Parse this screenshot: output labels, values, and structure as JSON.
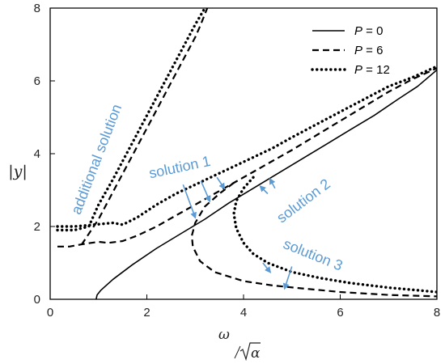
{
  "chart_data": {
    "type": "line",
    "xlabel_num": "ω",
    "xlabel_den": "α",
    "ylabel": "|y|",
    "xlim": [
      0,
      8
    ],
    "ylim": [
      0,
      8
    ],
    "x_ticks": [
      "0",
      "2",
      "4",
      "6",
      "8"
    ],
    "y_ticks": [
      "0",
      "2",
      "4",
      "6",
      "8"
    ],
    "grid": false,
    "legend_position": "top-right",
    "legend": [
      {
        "label_var": "P",
        "label_eq": " = 0",
        "style": "solid"
      },
      {
        "label_var": "P",
        "label_eq": " = 6",
        "style": "dashed"
      },
      {
        "label_var": "P",
        "label_eq": " = 12",
        "style": "dotted"
      }
    ],
    "series": [
      {
        "style": "solid",
        "segments": [
          [
            [
              0.95,
              0
            ],
            [
              0.97,
              0.12
            ],
            [
              1.05,
              0.25
            ],
            [
              1.3,
              0.55
            ],
            [
              1.7,
              0.95
            ],
            [
              2.2,
              1.4
            ],
            [
              2.7,
              1.8
            ],
            [
              3.2,
              2.2
            ],
            [
              3.7,
              2.65
            ],
            [
              4.2,
              3.05
            ],
            [
              4.7,
              3.45
            ],
            [
              5.2,
              3.85
            ],
            [
              5.7,
              4.25
            ],
            [
              6.2,
              4.65
            ],
            [
              6.7,
              5.05
            ],
            [
              7.2,
              5.5
            ],
            [
              7.6,
              5.85
            ],
            [
              8.0,
              6.3
            ]
          ]
        ]
      },
      {
        "style": "dashed",
        "segments": [
          [
            [
              0.15,
              1.45
            ],
            [
              0.4,
              1.45
            ],
            [
              0.7,
              1.52
            ],
            [
              1.0,
              1.58
            ],
            [
              1.2,
              1.55
            ],
            [
              1.5,
              1.6
            ],
            [
              1.8,
              1.75
            ],
            [
              2.2,
              2.0
            ],
            [
              2.6,
              2.3
            ],
            [
              3.0,
              2.6
            ],
            [
              3.4,
              2.9
            ],
            [
              3.8,
              3.2
            ],
            [
              4.2,
              3.5
            ],
            [
              4.6,
              3.8
            ],
            [
              5.0,
              4.1
            ],
            [
              5.5,
              4.5
            ],
            [
              6.0,
              4.9
            ],
            [
              6.5,
              5.3
            ],
            [
              7.0,
              5.7
            ],
            [
              7.5,
              6.05
            ],
            [
              8.0,
              6.35
            ]
          ],
          [
            [
              0.65,
              1.5
            ],
            [
              1.0,
              2.2
            ],
            [
              1.4,
              3.2
            ],
            [
              1.8,
              4.2
            ],
            [
              2.2,
              5.2
            ],
            [
              2.6,
              6.2
            ],
            [
              3.0,
              7.2
            ],
            [
              3.1,
              7.5
            ],
            [
              3.25,
              8.0
            ]
          ],
          [
            [
              3.8,
              3.2
            ],
            [
              3.5,
              2.9
            ],
            [
              3.2,
              2.55
            ],
            [
              3.0,
              2.1
            ],
            [
              2.93,
              1.75
            ],
            [
              2.95,
              1.45
            ],
            [
              3.1,
              1.05
            ],
            [
              3.4,
              0.75
            ],
            [
              4.0,
              0.5
            ],
            [
              4.6,
              0.38
            ],
            [
              5.2,
              0.3
            ],
            [
              6.0,
              0.2
            ],
            [
              7.0,
              0.12
            ],
            [
              8.0,
              0.08
            ]
          ]
        ]
      },
      {
        "style": "dotted",
        "segments": [
          [
            [
              0.15,
              2.0
            ],
            [
              0.5,
              2.0
            ],
            [
              0.9,
              2.05
            ],
            [
              1.3,
              2.1
            ],
            [
              1.5,
              2.05
            ],
            [
              1.8,
              2.25
            ],
            [
              2.2,
              2.6
            ],
            [
              2.6,
              2.9
            ],
            [
              3.0,
              3.15
            ],
            [
              3.4,
              3.4
            ],
            [
              3.8,
              3.65
            ],
            [
              4.2,
              3.9
            ],
            [
              4.6,
              4.15
            ],
            [
              5.0,
              4.45
            ],
            [
              5.5,
              4.8
            ],
            [
              6.0,
              5.15
            ],
            [
              6.5,
              5.5
            ],
            [
              7.0,
              5.85
            ],
            [
              7.5,
              6.1
            ],
            [
              8.0,
              6.4
            ]
          ],
          [
            [
              0.15,
              1.9
            ],
            [
              0.5,
              1.9
            ],
            [
              0.8,
              2.0
            ],
            [
              1.0,
              2.6
            ],
            [
              1.3,
              3.3
            ],
            [
              1.6,
              4.05
            ],
            [
              2.0,
              5.05
            ],
            [
              2.4,
              6.05
            ],
            [
              2.8,
              7.05
            ],
            [
              3.0,
              7.55
            ],
            [
              3.2,
              8.0
            ]
          ],
          [
            [
              4.2,
              3.35
            ],
            [
              4.0,
              3.05
            ],
            [
              3.85,
              2.7
            ],
            [
              3.8,
              2.35
            ],
            [
              3.85,
              1.95
            ],
            [
              4.0,
              1.55
            ],
            [
              4.2,
              1.25
            ],
            [
              4.5,
              1.0
            ],
            [
              5.0,
              0.75
            ],
            [
              5.6,
              0.58
            ],
            [
              6.2,
              0.45
            ],
            [
              7.0,
              0.32
            ],
            [
              8.0,
              0.2
            ]
          ]
        ]
      }
    ],
    "annotations": [
      {
        "id": "additional",
        "text": "additional solution",
        "x": 1.05,
        "y": 3.8,
        "rotate": -69
      },
      {
        "id": "sol1",
        "text": "solution 1",
        "x": 2.7,
        "y": 3.5,
        "rotate": -12
      },
      {
        "id": "sol2",
        "text": "solution 2",
        "x": 5.3,
        "y": 2.6,
        "rotate": -37
      },
      {
        "id": "sol3",
        "text": "solution 3",
        "x": 5.4,
        "y": 1.1,
        "rotate": 22
      }
    ],
    "arrows": [
      {
        "x1": 2.75,
        "y1": 3.15,
        "x2": 3.0,
        "y2": 2.25
      },
      {
        "x1": 3.12,
        "y1": 3.25,
        "x2": 3.3,
        "y2": 2.7
      },
      {
        "x1": 3.45,
        "y1": 3.35,
        "x2": 3.6,
        "y2": 3.05
      },
      {
        "x1": 4.5,
        "y1": 2.9,
        "x2": 4.35,
        "y2": 3.1
      },
      {
        "x1": 4.65,
        "y1": 3.05,
        "x2": 4.55,
        "y2": 3.3
      },
      {
        "x1": 4.4,
        "y1": 1.0,
        "x2": 4.55,
        "y2": 0.75
      },
      {
        "x1": 5.0,
        "y1": 0.9,
        "x2": 4.85,
        "y2": 0.3
      }
    ],
    "accent_color": "#5b9bd5"
  }
}
